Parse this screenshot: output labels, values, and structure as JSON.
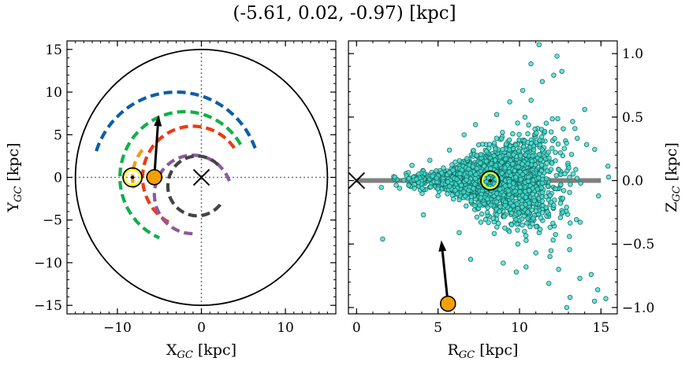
{
  "title": "(-5.61, 0.02, -0.97) [kpc]",
  "chart_data": [
    {
      "type": "line",
      "panel": "left",
      "xlabel": "X_GC [kpc]",
      "ylabel": "Y_GC [kpc]",
      "xlim": [
        -16,
        16
      ],
      "ylim": [
        -16,
        16
      ],
      "xticks": [
        -10,
        0,
        10
      ],
      "yticks": [
        -15,
        -10,
        -5,
        0,
        5,
        10,
        15
      ],
      "xtick_labels": [
        "−10",
        "0",
        "10"
      ],
      "ytick_labels": [
        "−15",
        "−10",
        "−5",
        "0",
        "5",
        "10",
        "15"
      ],
      "grid": false,
      "boundary_circle": {
        "center": [
          0,
          0
        ],
        "radius": 15,
        "color": "#000000"
      },
      "dotted_axes": {
        "x": 0,
        "y": 0,
        "color": "#777777"
      },
      "spiral_arcs": [
        {
          "color": "#0b5fa5",
          "radius": 10.0,
          "center": [
            -3.0,
            0.0
          ],
          "start_deg": 20,
          "end_deg": 165
        },
        {
          "color": "#10b049",
          "radius": 7.7,
          "center": [
            -2.0,
            0.0
          ],
          "start_deg": 30,
          "end_deg": 247
        },
        {
          "color": "#ee3a12",
          "radius": 6.0,
          "center": [
            -1.0,
            0.0
          ],
          "start_deg": 35,
          "end_deg": 245
        },
        {
          "color": "#8a5a9e",
          "radius": 4.6,
          "center": [
            -1.0,
            -2.0
          ],
          "start_deg": 20,
          "end_deg": 270
        },
        {
          "color": "#444444",
          "radius": 3.5,
          "center": [
            -0.5,
            -1.0
          ],
          "start_deg": 45,
          "end_deg": 330
        },
        {
          "color": "#f39c12",
          "radius": 5.0,
          "center": [
            -3.2,
            0.0
          ],
          "start_deg": 140,
          "end_deg": 195
        }
      ],
      "galactic_center": {
        "x": 0,
        "y": 0,
        "marker": "x"
      },
      "sun": {
        "x": -8.2,
        "y": 0,
        "marker": "sun-symbol",
        "color": "#ffff00"
      },
      "object": {
        "x": -5.61,
        "y": 0.02,
        "color": "#f5a000"
      },
      "velocity_arrow": {
        "from": [
          -5.61,
          0.02
        ],
        "to": [
          -5.1,
          7.3
        ]
      }
    },
    {
      "type": "scatter",
      "panel": "right",
      "xlabel": "R_GC [kpc]",
      "ylabel": "Z_GC [kpc]",
      "xlim": [
        -0.5,
        16
      ],
      "ylim": [
        -1.05,
        1.1
      ],
      "xticks": [
        0,
        5,
        10,
        15
      ],
      "yticks": [
        -1.0,
        -0.5,
        0.0,
        0.5,
        1.0
      ],
      "xtick_labels": [
        "0",
        "5",
        "10",
        "15"
      ],
      "ytick_labels": [
        "−1.0",
        "−0.5",
        "0.0",
        "0.5",
        "1.0"
      ],
      "yaxis_side": "right",
      "grid": false,
      "disk_line": {
        "x": [
          0,
          15
        ],
        "y": 0,
        "color": "#808080"
      },
      "galactic_center": {
        "x": 0,
        "y": 0,
        "marker": "x"
      },
      "sun": {
        "x": 8.2,
        "y": 0,
        "marker": "sun-symbol",
        "color": "#ffff00"
      },
      "object": {
        "x": 5.61,
        "y": -0.97,
        "color": "#f5a000"
      },
      "velocity_arrow": {
        "from": [
          5.61,
          -0.97
        ],
        "to": [
          5.2,
          -0.47
        ]
      },
      "star_cloud": {
        "color": "#40e0d0",
        "edge": "#1a6b66",
        "count": 2400,
        "center_x": 8.3,
        "x_min": 1.5,
        "x_max": 16
      },
      "points": [
        [
          1.6,
          -0.46
        ],
        [
          3.4,
          0.12
        ],
        [
          4.1,
          -0.27
        ],
        [
          4.5,
          0.16
        ],
        [
          5.0,
          -0.12
        ],
        [
          5.7,
          0.24
        ],
        [
          6.3,
          -0.41
        ],
        [
          6.6,
          0.36
        ],
        [
          7.0,
          -0.62
        ],
        [
          7.3,
          0.44
        ],
        [
          8.1,
          -0.33
        ],
        [
          8.6,
          0.52
        ],
        [
          9.0,
          -0.65
        ],
        [
          9.4,
          0.62
        ],
        [
          9.9,
          -0.5
        ],
        [
          10.2,
          0.71
        ],
        [
          10.7,
          0.92
        ],
        [
          11.0,
          -0.57
        ],
        [
          11.4,
          0.78
        ],
        [
          11.8,
          -0.81
        ],
        [
          12.1,
          0.83
        ],
        [
          12.4,
          -0.7
        ],
        [
          12.6,
          0.86
        ],
        [
          13.1,
          -0.92
        ],
        [
          13.4,
          0.41
        ],
        [
          13.7,
          -0.77
        ],
        [
          14.0,
          0.56
        ],
        [
          14.4,
          -0.74
        ],
        [
          14.8,
          -0.86
        ],
        [
          15.3,
          -0.93
        ],
        [
          12.9,
          -1.0
        ],
        [
          14.6,
          -0.95
        ],
        [
          12.3,
          0.98
        ],
        [
          11.2,
          1.07
        ],
        [
          9.8,
          -0.72
        ],
        [
          10.4,
          -0.68
        ]
      ]
    }
  ]
}
